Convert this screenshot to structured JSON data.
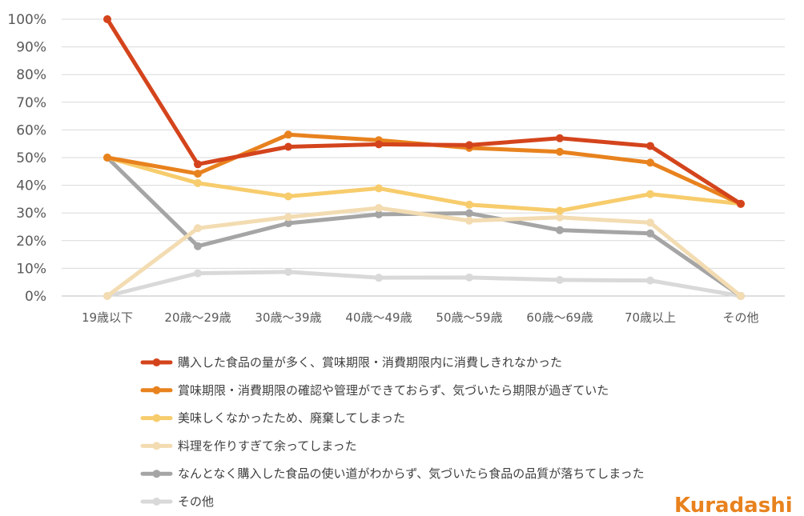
{
  "brand": {
    "logo": "Kuradashi",
    "color": "#e8821e"
  },
  "chart_data": {
    "type": "line",
    "categories": [
      "19歳以下",
      "20歳～29歳",
      "30歳～39歳",
      "40歳～49歳",
      "50歳～59歳",
      "60歳～69歳",
      "70歳以上",
      "その他"
    ],
    "yticks": [
      "0%",
      "10%",
      "20%",
      "30%",
      "40%",
      "50%",
      "60%",
      "70%",
      "80%",
      "90%",
      "100%"
    ],
    "ylim": [
      0,
      100
    ],
    "grid": true,
    "legend_position": "bottom",
    "series": [
      {
        "name": "購入した食品の量が多く、賞味期限・消費期限内に消費しきれなかった",
        "color": "#d4441c",
        "values": [
          100,
          47.6,
          53.9,
          54.8,
          54.5,
          57.0,
          54.2,
          33.3
        ]
      },
      {
        "name": "賞味期限・消費期限の確認や管理ができておらず、気づいたら期限が過ぎていた",
        "color": "#e8821e",
        "values": [
          50,
          44.2,
          58.3,
          56.3,
          53.5,
          52.1,
          48.2,
          33.3
        ]
      },
      {
        "name": "美味しくなかったため、廃棄してしまった",
        "color": "#f7cc6c",
        "values": [
          50,
          40.8,
          36.0,
          38.9,
          33.0,
          30.8,
          36.8,
          33.3
        ]
      },
      {
        "name": "料理を作りすぎて余ってしまった",
        "color": "#f3dcb2",
        "values": [
          0,
          24.5,
          28.5,
          31.8,
          27.2,
          28.4,
          26.5,
          0
        ]
      },
      {
        "name": "なんとなく購入した食品の使い道がわからず、気づいたら食品の品質が落ちてしまった",
        "color": "#a5a5a5",
        "values": [
          50,
          18.0,
          26.3,
          29.5,
          29.9,
          23.8,
          22.6,
          0
        ]
      },
      {
        "name": "その他",
        "color": "#d9d9d9",
        "values": [
          0,
          8.2,
          8.7,
          6.6,
          6.7,
          5.8,
          5.6,
          0
        ]
      }
    ]
  }
}
